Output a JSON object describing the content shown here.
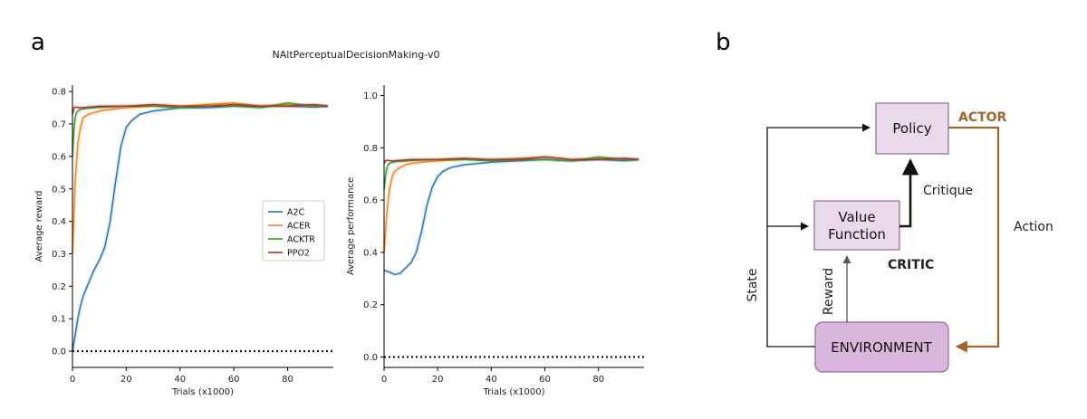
{
  "panel_a_label": "a",
  "panel_b_label": "b",
  "figure_title": "NAltPerceptualDecisionMaking-v0",
  "chart_data": [
    {
      "type": "line",
      "xlabel": "Trials (x1000)",
      "ylabel": "Average reward",
      "xlim": [
        0,
        97
      ],
      "ylim": [
        -0.05,
        0.82
      ],
      "xticks": [
        0,
        20,
        40,
        60,
        80
      ],
      "yticks": [
        0.0,
        0.1,
        0.2,
        0.3,
        0.4,
        0.5,
        0.6,
        0.7,
        0.8
      ],
      "reference_line": 0.0,
      "legend": "center-right",
      "series": [
        {
          "name": "A2C",
          "color": "#1f77b4",
          "x": [
            0,
            1,
            2,
            3,
            4,
            5,
            6,
            8,
            10,
            12,
            14,
            16,
            18,
            20,
            22,
            25,
            30,
            35,
            40,
            50,
            60,
            70,
            80,
            90,
            95
          ],
          "y": [
            0.0,
            0.05,
            0.1,
            0.14,
            0.17,
            0.19,
            0.21,
            0.25,
            0.28,
            0.32,
            0.4,
            0.52,
            0.63,
            0.69,
            0.71,
            0.73,
            0.74,
            0.745,
            0.75,
            0.75,
            0.755,
            0.755,
            0.755,
            0.752,
            0.755
          ]
        },
        {
          "name": "ACER",
          "color": "#ff7f0e",
          "x": [
            0,
            1,
            2,
            3,
            4,
            6,
            8,
            10,
            14,
            20,
            30,
            40,
            50,
            60,
            70,
            80,
            90,
            95
          ],
          "y": [
            0.3,
            0.52,
            0.64,
            0.69,
            0.72,
            0.73,
            0.735,
            0.74,
            0.745,
            0.75,
            0.755,
            0.755,
            0.76,
            0.765,
            0.755,
            0.76,
            0.755,
            0.755
          ]
        },
        {
          "name": "ACKTR",
          "color": "#2ca02c",
          "x": [
            0,
            0.5,
            1,
            1.5,
            2,
            3,
            5,
            8,
            12,
            20,
            30,
            40,
            50,
            60,
            70,
            80,
            90,
            95
          ],
          "y": [
            0.6,
            0.68,
            0.72,
            0.735,
            0.74,
            0.745,
            0.748,
            0.75,
            0.752,
            0.755,
            0.755,
            0.75,
            0.755,
            0.755,
            0.75,
            0.765,
            0.755,
            0.755
          ]
        },
        {
          "name": "PPO2",
          "color": "#a93226",
          "x": [
            0,
            0.5,
            1,
            3,
            6,
            10,
            20,
            30,
            40,
            50,
            60,
            70,
            80,
            90,
            95
          ],
          "y": [
            0.73,
            0.75,
            0.752,
            0.75,
            0.752,
            0.755,
            0.755,
            0.76,
            0.755,
            0.755,
            0.76,
            0.755,
            0.755,
            0.76,
            0.755
          ]
        }
      ]
    },
    {
      "type": "line",
      "xlabel": "Trials (x1000)",
      "ylabel": "Average performance",
      "xlim": [
        0,
        97
      ],
      "ylim": [
        -0.04,
        1.04
      ],
      "xticks": [
        0,
        20,
        40,
        60,
        80
      ],
      "yticks": [
        0.0,
        0.2,
        0.4,
        0.6,
        0.8,
        1.0
      ],
      "reference_line": 0.0,
      "series": [
        {
          "name": "A2C",
          "color": "#1f77b4",
          "x": [
            0,
            2,
            4,
            6,
            8,
            10,
            12,
            14,
            16,
            18,
            20,
            22,
            25,
            30,
            35,
            40,
            50,
            60,
            70,
            80,
            90,
            95
          ],
          "y": [
            0.33,
            0.325,
            0.315,
            0.32,
            0.34,
            0.36,
            0.4,
            0.48,
            0.58,
            0.65,
            0.69,
            0.71,
            0.725,
            0.735,
            0.74,
            0.745,
            0.75,
            0.755,
            0.75,
            0.755,
            0.75,
            0.755
          ]
        },
        {
          "name": "ACER",
          "color": "#ff7f0e",
          "x": [
            0,
            1,
            2,
            3,
            4,
            6,
            8,
            10,
            14,
            20,
            30,
            40,
            50,
            60,
            70,
            80,
            90,
            95
          ],
          "y": [
            0.4,
            0.55,
            0.64,
            0.69,
            0.71,
            0.725,
            0.735,
            0.74,
            0.745,
            0.75,
            0.755,
            0.755,
            0.76,
            0.765,
            0.755,
            0.76,
            0.755,
            0.755
          ]
        },
        {
          "name": "ACKTR",
          "color": "#2ca02c",
          "x": [
            0,
            0.5,
            1,
            1.5,
            2,
            3,
            5,
            8,
            12,
            20,
            30,
            40,
            50,
            60,
            70,
            80,
            90,
            95
          ],
          "y": [
            0.64,
            0.69,
            0.72,
            0.735,
            0.74,
            0.745,
            0.748,
            0.75,
            0.752,
            0.755,
            0.755,
            0.75,
            0.755,
            0.755,
            0.75,
            0.765,
            0.755,
            0.755
          ]
        },
        {
          "name": "PPO2",
          "color": "#a93226",
          "x": [
            0,
            0.5,
            1,
            3,
            6,
            10,
            20,
            30,
            40,
            50,
            60,
            70,
            80,
            90,
            95
          ],
          "y": [
            0.74,
            0.75,
            0.752,
            0.75,
            0.752,
            0.755,
            0.755,
            0.76,
            0.755,
            0.755,
            0.765,
            0.755,
            0.755,
            0.76,
            0.755
          ]
        }
      ]
    }
  ],
  "diagram": {
    "policy_label": "Policy",
    "value_function_label_line1": "Value",
    "value_function_label_line2": "Function",
    "environment_label": "ENVIRONMENT",
    "actor_label": "ACTOR",
    "critic_label": "CRITIC",
    "critique_label": "Critique",
    "action_label": "Action",
    "state_label": "State",
    "reward_label": "Reward",
    "colors": {
      "box_fill_light": "#ead9ea",
      "box_fill_env": "#d9b6dc",
      "box_stroke": "#8e6b93",
      "actor_color": "#a0652a",
      "arrow_black": "#111111",
      "arrow_gray": "#555555"
    }
  }
}
